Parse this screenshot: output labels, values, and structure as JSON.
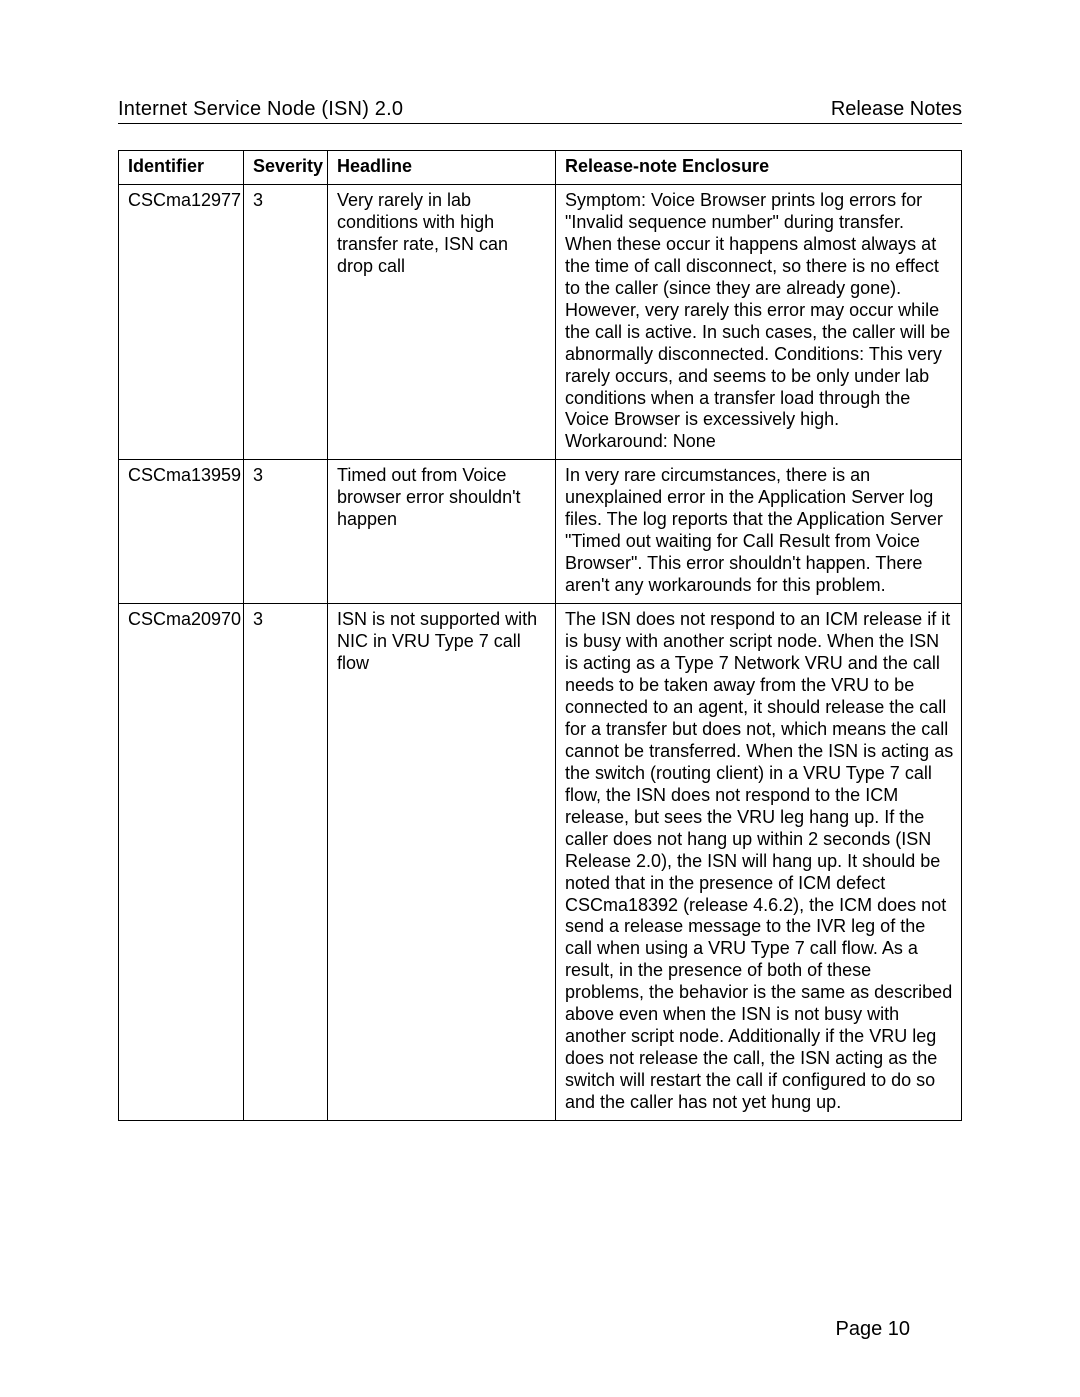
{
  "header": {
    "left": "Internet Service Node (ISN) 2.0",
    "right": "Release Notes"
  },
  "footer": {
    "page": "Page 10"
  },
  "table": {
    "columns": [
      "Identifier",
      "Severity",
      "Headline",
      "Release-note Enclosure"
    ],
    "rows": [
      {
        "id": "CSCma12977",
        "severity": "3",
        "headline": "Very rarely in lab conditions with high transfer rate, ISN can drop call",
        "enclosure": "Symptom: Voice Browser prints log errors for \"Invalid sequence number\" during transfer. When these occur it happens almost always at the time of call disconnect, so there is no effect to the caller (since they are already gone). However, very rarely this error may occur while the call is active. In such cases, the caller will be abnormally disconnected. Conditions: This very rarely occurs, and seems to be only under lab conditions when a transfer load through the Voice Browser is excessively high.\nWorkaround: None"
      },
      {
        "id": "CSCma13959",
        "severity": "3",
        "headline": "Timed out from Voice browser error shouldn't happen",
        "enclosure": "In very rare circumstances, there is an unexplained error in the Application Server log files. The log reports that the Application Server \"Timed out waiting for Call Result from Voice Browser\". This error shouldn't happen. There aren't any workarounds for this problem."
      },
      {
        "id": "CSCma20970",
        "severity": "3",
        "headline": "ISN is not supported with NIC in VRU Type 7 call flow",
        "enclosure": "The ISN does not respond to an ICM release if it is busy with another script node. When the ISN is acting as a Type 7 Network VRU and the call needs to be taken away from the VRU to be connected to an agent, it should release the call for a transfer but does not, which means the call cannot be transferred.  When the ISN is acting as the switch (routing client) in a VRU Type 7 call flow, the ISN does not respond to the ICM release, but sees the VRU leg hang up. If the caller does not hang up within 2 seconds (ISN Release 2.0), the ISN will hang up. It should be noted that in the presence of ICM defect CSCma18392 (release 4.6.2), the ICM does not send a release message to the IVR leg of the call when using a VRU Type 7 call flow. As a result, in the presence of both of these problems, the behavior is the same as described above even when the ISN is not busy with another script node. Additionally if the VRU leg does not release the call, the ISN acting as the switch will restart the call if configured to do so and the caller has not yet hung up."
      }
    ]
  }
}
